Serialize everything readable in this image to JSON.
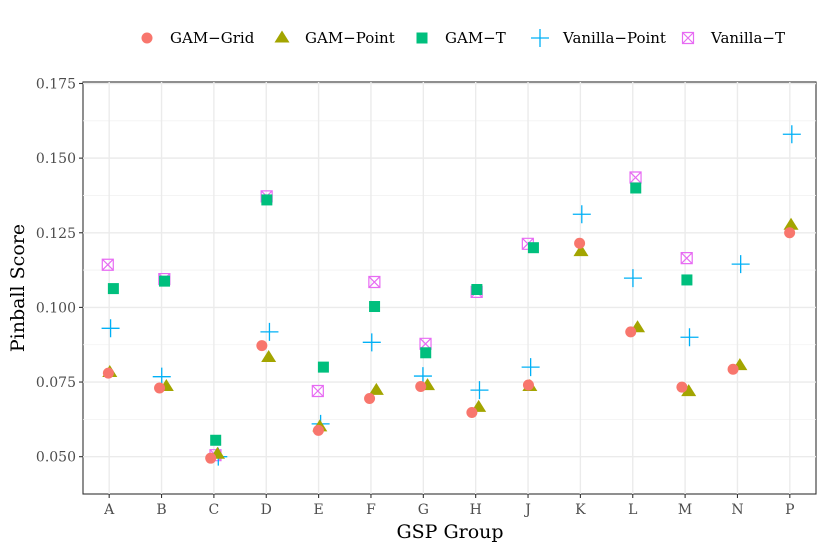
{
  "chart_data": {
    "type": "scatter",
    "title": "",
    "xlabel": "GSP Group",
    "ylabel": "Pinball Score",
    "ylim": [
      0.0375,
      0.1755
    ],
    "yticks": [
      0.05,
      0.075,
      0.1,
      0.125,
      0.15,
      0.175
    ],
    "ytick_labels": [
      "0.050",
      "0.075",
      "0.100",
      "0.125",
      "0.150",
      "0.175"
    ],
    "categories": [
      "A",
      "B",
      "C",
      "D",
      "E",
      "F",
      "G",
      "H",
      "J",
      "K",
      "L",
      "M",
      "N",
      "P"
    ],
    "grid": true,
    "legend_position": "top",
    "series": [
      {
        "name": "GAM−Grid",
        "marker": "circle",
        "color": "#F8766D",
        "values": [
          0.078,
          0.073,
          0.0495,
          0.0872,
          0.0588,
          0.0695,
          0.0735,
          0.0648,
          0.074,
          0.1215,
          0.0918,
          0.0733,
          0.0793,
          0.125
        ]
      },
      {
        "name": "GAM−Point",
        "marker": "triangle",
        "color": "#A3A500",
        "values": [
          0.0782,
          0.0735,
          0.0508,
          0.0832,
          0.06,
          0.0722,
          0.0738,
          0.0665,
          0.0735,
          0.1187,
          0.0932,
          0.0718,
          0.0805,
          0.1275
        ]
      },
      {
        "name": "GAM−T",
        "marker": "square",
        "color": "#00BF7D",
        "values": [
          0.1063,
          0.1088,
          0.0555,
          0.136,
          0.08,
          0.1003,
          0.0848,
          0.106,
          0.12,
          null,
          0.14,
          0.1092,
          null,
          null
        ]
      },
      {
        "name": "Vanilla−Point",
        "marker": "plus",
        "color": "#00B0F6",
        "values": [
          0.093,
          0.0768,
          0.05,
          0.0918,
          0.061,
          0.0883,
          0.077,
          0.0723,
          0.08,
          0.1312,
          0.1098,
          0.09,
          0.1145,
          0.158
        ]
      },
      {
        "name": "Vanilla−T",
        "marker": "boxx",
        "color": "#E76BF3",
        "values": [
          0.1143,
          0.1095,
          0.0505,
          0.1372,
          0.072,
          0.1085,
          0.0878,
          0.1052,
          0.1213,
          null,
          0.1435,
          0.1165,
          null,
          null
        ]
      }
    ]
  }
}
